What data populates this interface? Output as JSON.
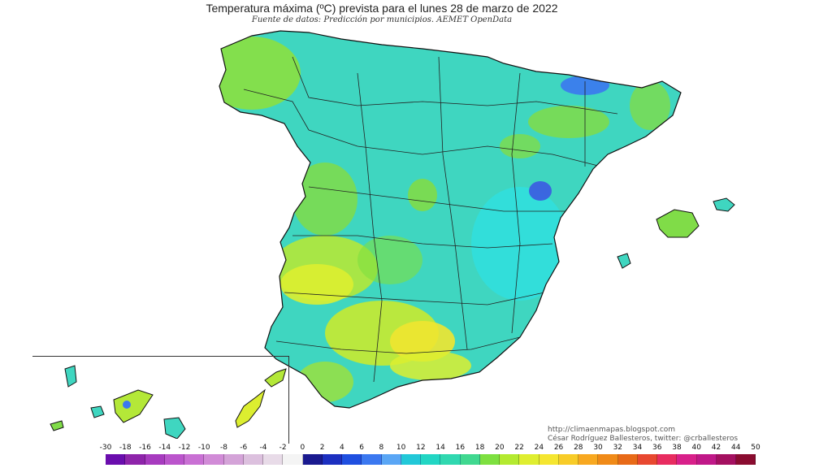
{
  "header": {
    "title": "Temperatura máxima (ºC) prevista para el lunes 28 de marzo de 2022",
    "subtitle": "Fuente de datos: Predicción por municipios. AEMET OpenData"
  },
  "credits": {
    "blog": "http://climaenmapas.blogspot.com",
    "author": "César Rodríguez Ballesteros, twitter: @crballesteros"
  },
  "legend": {
    "ticks": [
      "-30",
      "-18",
      "-16",
      "-14",
      "-12",
      "-10",
      "-8",
      "-6",
      "-4",
      "-2",
      "0",
      "2",
      "4",
      "6",
      "8",
      "10",
      "12",
      "14",
      "16",
      "18",
      "20",
      "22",
      "24",
      "26",
      "28",
      "30",
      "32",
      "34",
      "36",
      "38",
      "40",
      "42",
      "44",
      "50"
    ],
    "colors": [
      "#6a0dad",
      "#8e24aa",
      "#a73bbf",
      "#bb55cc",
      "#c970d4",
      "#d18bd7",
      "#d4a3d8",
      "#dcc0de",
      "#e8dbe8",
      "#f4f4f4",
      "#1a1a8f",
      "#1c2fc0",
      "#1f4fe0",
      "#3b78f0",
      "#5aa6f5",
      "#22c8d8",
      "#22d6c4",
      "#30d8b0",
      "#40d890",
      "#7ee040",
      "#b4ea30",
      "#dfee30",
      "#f5e630",
      "#f8cc28",
      "#f8a820",
      "#f08a18",
      "#e86a18",
      "#e84830",
      "#e82c60",
      "#d8208a",
      "#c01888",
      "#a41060",
      "#8a0c30"
    ]
  },
  "map": {
    "label": "Mapa de España con temperatura máxima prevista"
  }
}
